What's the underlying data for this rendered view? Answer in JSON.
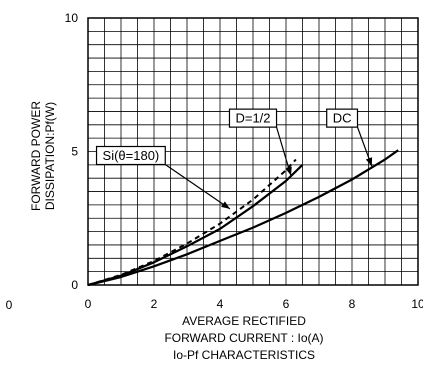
{
  "chart_data": {
    "type": "line",
    "title": "Io-Pf CHARACTERISTICS",
    "xlabel_lines": [
      "AVERAGE RECTIFIED",
      "FORWARD CURRENT : Io(A)"
    ],
    "ylabel_lines": [
      "FORWARD POWER",
      "DISSIPATION:Pf(W)"
    ],
    "xlim": [
      0,
      10
    ],
    "ylim": [
      0,
      10
    ],
    "x_ticks": [
      {
        "value": 0,
        "label": "0"
      },
      {
        "value": 2,
        "label": "2"
      },
      {
        "value": 4,
        "label": "4"
      },
      {
        "value": 6,
        "label": "6"
      },
      {
        "value": 8,
        "label": "8"
      },
      {
        "value": 10,
        "label": "10"
      }
    ],
    "y_ticks": [
      {
        "value": 0,
        "label": "0"
      },
      {
        "value": 5,
        "label": "5"
      },
      {
        "value": 10,
        "label": "10"
      }
    ],
    "stray_label": "0",
    "grid": true,
    "series": [
      {
        "name": "DC",
        "style": "solid",
        "x": [
          0,
          1,
          2,
          3,
          4,
          5,
          6,
          7,
          8,
          9,
          9.4
        ],
        "y": [
          0,
          0.3,
          0.7,
          1.15,
          1.65,
          2.15,
          2.7,
          3.3,
          3.95,
          4.7,
          5.05
        ],
        "label_box": {
          "x": 7.7,
          "y": 6.25
        },
        "arrow_to": {
          "x": 8.6,
          "y": 4.45
        }
      },
      {
        "name": "D=1/2",
        "style": "solid",
        "x": [
          0,
          1,
          2,
          3,
          4,
          5,
          6,
          6.5
        ],
        "y": [
          0,
          0.35,
          0.85,
          1.45,
          2.1,
          2.95,
          3.9,
          4.5
        ],
        "label_box": {
          "x": 5.0,
          "y": 6.25
        },
        "arrow_to": {
          "x": 6.15,
          "y": 4.1
        }
      },
      {
        "name": "Si(θ=180)",
        "style": "dashed",
        "x": [
          0,
          1,
          2,
          3,
          4,
          5,
          6,
          6.3
        ],
        "y": [
          0,
          0.38,
          0.9,
          1.55,
          2.3,
          3.2,
          4.3,
          4.7
        ],
        "label_box": {
          "x": 1.3,
          "y": 4.85
        },
        "arrow_to": {
          "x": 4.3,
          "y": 2.85
        }
      }
    ]
  }
}
